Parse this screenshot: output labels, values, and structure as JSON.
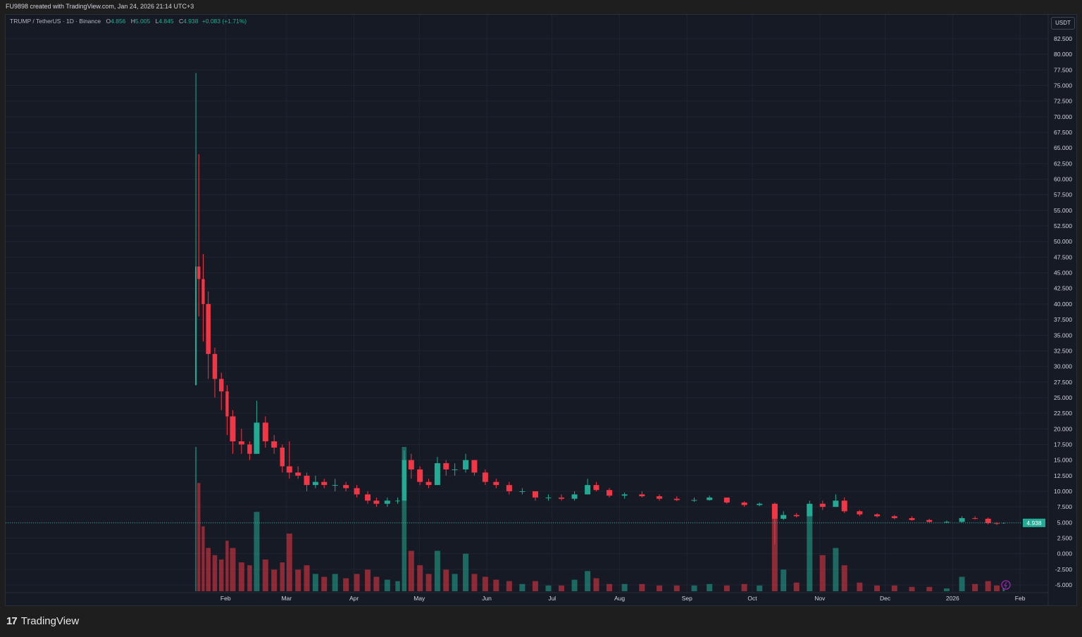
{
  "header": {
    "credit": "FU9898 created with TradingView.com, Jan 24, 2026 21:14 UTC+3"
  },
  "legend": {
    "symbol": "TRUMP / TetherUS · 1D · Binance",
    "o_label": "O",
    "o": "4.856",
    "h_label": "H",
    "h": "5.005",
    "l_label": "L",
    "l": "4.845",
    "c_label": "C",
    "c": "4.938",
    "change": "+0.083 (+1.71%)"
  },
  "footer": {
    "brand": "TradingView"
  },
  "chart_data": {
    "type": "candlestick",
    "currency": "USDT",
    "last_price": "4.938",
    "colors": {
      "up": "#22ab94",
      "down": "#f23645",
      "background": "#161a25",
      "grid": "#1f2431"
    },
    "y_ticks": [
      "82.500",
      "80.000",
      "77.500",
      "75.000",
      "72.500",
      "70.000",
      "67.500",
      "65.000",
      "62.500",
      "60.000",
      "57.500",
      "55.000",
      "52.500",
      "50.000",
      "47.500",
      "45.000",
      "42.500",
      "40.000",
      "37.500",
      "35.000",
      "32.500",
      "30.000",
      "27.500",
      "25.000",
      "22.500",
      "20.000",
      "17.500",
      "15.000",
      "12.500",
      "10.000",
      "7.500",
      "5.000",
      "2.500",
      "0.000",
      "-2.500",
      "-5.000"
    ],
    "ylim": [
      -5,
      82.5
    ],
    "x_ticks": [
      {
        "label": "Feb",
        "date": "2025-02-01"
      },
      {
        "label": "Mar",
        "date": "2025-03-01"
      },
      {
        "label": "Apr",
        "date": "2025-04-01"
      },
      {
        "label": "May",
        "date": "2025-05-01"
      },
      {
        "label": "Jun",
        "date": "2025-06-01"
      },
      {
        "label": "Jul",
        "date": "2025-07-01"
      },
      {
        "label": "Aug",
        "date": "2025-08-01"
      },
      {
        "label": "Sep",
        "date": "2025-09-01"
      },
      {
        "label": "Oct",
        "date": "2025-10-01"
      },
      {
        "label": "Nov",
        "date": "2025-11-01"
      },
      {
        "label": "Dec",
        "date": "2025-12-01"
      },
      {
        "label": "2026",
        "date": "2026-01-01"
      },
      {
        "label": "Feb",
        "date": "2026-02-01"
      }
    ],
    "xlim": [
      "2025-01-05",
      "2026-02-05"
    ],
    "candles": [
      [
        "2025-01-18",
        27,
        77,
        27,
        46,
        100
      ],
      [
        "2025-01-19",
        46,
        64,
        38,
        44,
        75
      ],
      [
        "2025-01-21",
        44,
        48,
        34,
        40,
        45
      ],
      [
        "2025-01-23",
        40,
        42,
        28,
        32,
        30
      ],
      [
        "2025-01-26",
        32,
        33,
        25,
        28,
        25
      ],
      [
        "2025-01-29",
        28,
        29,
        23,
        26,
        22
      ],
      [
        "2025-02-01",
        26,
        27,
        19,
        22,
        35
      ],
      [
        "2025-02-03",
        22,
        23,
        16,
        18,
        30
      ],
      [
        "2025-02-07",
        18,
        20,
        16,
        17.5,
        20
      ],
      [
        "2025-02-11",
        17.5,
        18,
        15,
        16,
        18
      ],
      [
        "2025-02-14",
        16,
        24.5,
        16,
        21,
        55
      ],
      [
        "2025-02-18",
        21,
        22,
        17,
        18,
        22
      ],
      [
        "2025-02-22",
        18,
        19,
        16,
        17,
        15
      ],
      [
        "2025-02-26",
        17,
        17.5,
        13,
        14,
        20
      ],
      [
        "2025-03-01",
        14,
        18,
        12,
        13,
        40
      ],
      [
        "2025-03-05",
        13,
        14,
        12,
        12.5,
        15
      ],
      [
        "2025-03-09",
        12.5,
        13,
        10,
        11,
        18
      ],
      [
        "2025-03-13",
        11,
        12.5,
        10.5,
        11.5,
        12
      ],
      [
        "2025-03-17",
        11.5,
        12,
        10.5,
        11,
        10
      ],
      [
        "2025-03-22",
        11,
        12,
        10,
        11,
        12
      ],
      [
        "2025-03-27",
        11,
        11.5,
        10,
        10.5,
        9
      ],
      [
        "2025-04-01",
        10.5,
        11,
        9,
        9.5,
        12
      ],
      [
        "2025-04-06",
        9.5,
        10,
        8,
        8.5,
        15
      ],
      [
        "2025-04-10",
        8.5,
        9,
        7.5,
        8,
        10
      ],
      [
        "2025-04-15",
        8,
        9,
        7.5,
        8.5,
        8
      ],
      [
        "2025-04-20",
        8.5,
        9,
        8,
        8.5,
        7
      ],
      [
        "2025-04-23",
        8.5,
        16.5,
        8.5,
        15,
        100
      ],
      [
        "2025-04-26",
        15,
        16,
        12,
        13.5,
        28
      ],
      [
        "2025-04-30",
        13.5,
        14,
        11,
        11.5,
        18
      ],
      [
        "2025-05-04",
        11.5,
        12,
        10.5,
        11,
        12
      ],
      [
        "2025-05-08",
        11,
        15.5,
        11,
        14.5,
        28
      ],
      [
        "2025-05-12",
        14.5,
        15,
        12.5,
        13.5,
        15
      ],
      [
        "2025-05-16",
        13.5,
        14.5,
        12.5,
        13.5,
        12
      ],
      [
        "2025-05-21",
        13.5,
        16,
        13,
        15,
        26
      ],
      [
        "2025-05-25",
        15,
        15,
        12.5,
        13,
        12
      ],
      [
        "2025-05-30",
        13,
        13.5,
        11,
        11.5,
        10
      ],
      [
        "2025-06-04",
        11.5,
        12,
        10.5,
        11,
        8
      ],
      [
        "2025-06-10",
        11,
        11.5,
        9.5,
        10,
        7
      ],
      [
        "2025-06-16",
        10,
        10.5,
        9.5,
        10,
        5
      ],
      [
        "2025-06-22",
        10,
        10,
        8.5,
        9,
        7
      ],
      [
        "2025-06-28",
        9,
        9.5,
        8.5,
        9,
        4
      ],
      [
        "2025-07-04",
        9,
        9.5,
        8.5,
        8.8,
        4
      ],
      [
        "2025-07-10",
        8.8,
        10,
        8.5,
        9.5,
        8
      ],
      [
        "2025-07-16",
        9.5,
        12,
        9.5,
        11,
        14
      ],
      [
        "2025-07-20",
        11,
        11.5,
        10,
        10.2,
        9
      ],
      [
        "2025-07-26",
        10.2,
        10.5,
        9,
        9.3,
        5
      ],
      [
        "2025-08-02",
        9.3,
        9.8,
        8.8,
        9.5,
        5
      ],
      [
        "2025-08-10",
        9.5,
        10,
        9,
        9.2,
        5
      ],
      [
        "2025-08-18",
        9.2,
        9.5,
        8.5,
        8.8,
        4
      ],
      [
        "2025-08-26",
        8.8,
        9.2,
        8.4,
        8.6,
        4
      ],
      [
        "2025-09-03",
        8.6,
        9,
        8.3,
        8.6,
        4
      ],
      [
        "2025-09-10",
        8.6,
        9.3,
        8.5,
        9,
        5
      ],
      [
        "2025-09-18",
        9,
        9,
        8,
        8.2,
        4
      ],
      [
        "2025-09-26",
        8.2,
        8.4,
        7.5,
        7.8,
        5
      ],
      [
        "2025-10-03",
        7.8,
        8.2,
        7.6,
        8,
        4
      ],
      [
        "2025-10-10",
        8,
        8.2,
        1.5,
        5.6,
        60
      ],
      [
        "2025-10-14",
        5.6,
        6.8,
        5.4,
        6.2,
        15
      ],
      [
        "2025-10-20",
        6.2,
        6.5,
        5.8,
        6,
        6
      ],
      [
        "2025-10-26",
        6,
        8.5,
        6,
        8,
        60
      ],
      [
        "2025-11-01",
        8,
        8.5,
        7,
        7.5,
        25
      ],
      [
        "2025-11-07",
        7.5,
        9.5,
        7.5,
        8.5,
        30
      ],
      [
        "2025-11-11",
        8.5,
        9,
        6.5,
        6.8,
        18
      ],
      [
        "2025-11-18",
        6.8,
        7,
        6,
        6.3,
        6
      ],
      [
        "2025-11-26",
        6.3,
        6.5,
        5.8,
        6,
        4
      ],
      [
        "2025-12-04",
        6,
        6.2,
        5.5,
        5.7,
        4
      ],
      [
        "2025-12-12",
        5.7,
        6,
        5.3,
        5.4,
        3
      ],
      [
        "2025-12-20",
        5.4,
        5.6,
        5,
        5.1,
        3
      ],
      [
        "2025-12-28",
        5.1,
        5.3,
        4.9,
        5.1,
        2
      ],
      [
        "2026-01-04",
        5.1,
        6,
        5,
        5.7,
        10
      ],
      [
        "2026-01-10",
        5.7,
        6,
        5.5,
        5.6,
        5
      ],
      [
        "2026-01-16",
        5.6,
        5.8,
        4.7,
        4.9,
        7
      ],
      [
        "2026-01-20",
        4.9,
        5,
        4.6,
        4.85,
        4
      ],
      [
        "2026-01-24",
        4.856,
        5.005,
        4.845,
        4.938,
        2
      ]
    ]
  }
}
